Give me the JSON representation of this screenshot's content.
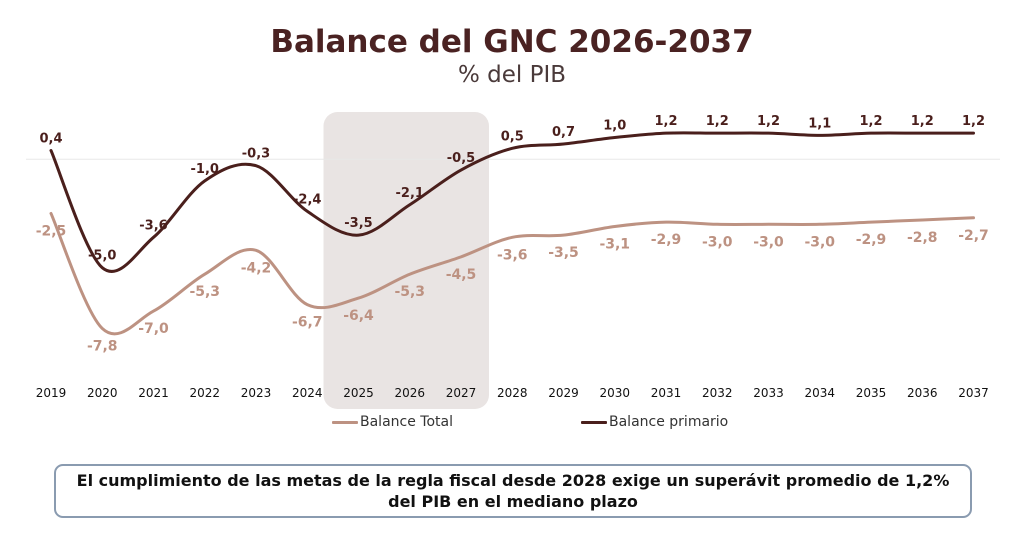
{
  "header": {
    "title": "Balance del GNC 2026-2037",
    "subtitle": "% del PIB"
  },
  "colors": {
    "total": "#bd9282",
    "primario": "#4a1f1c",
    "shade": "#e9e4e3",
    "note_border": "#8a9bb0"
  },
  "legend": {
    "total_label": "Balance Total",
    "primario_label": "Balance primario"
  },
  "note": {
    "text": "El cumplimiento de las metas de la regla fiscal desde 2028 exige un superávit promedio de 1,2% del PIB en el mediano plazo"
  },
  "chart_data": {
    "type": "line",
    "title": "Balance del GNC 2026-2037",
    "subtitle": "% del PIB",
    "categories": [
      "2019",
      "2020",
      "2021",
      "2022",
      "2023",
      "2024",
      "2025",
      "2026",
      "2027",
      "2028",
      "2029",
      "2030",
      "2031",
      "2032",
      "2033",
      "2034",
      "2035",
      "2036",
      "2037"
    ],
    "series": [
      {
        "name": "Balance Total",
        "values": [
          -2.5,
          -7.8,
          -7.0,
          -5.3,
          -4.2,
          -6.7,
          -6.4,
          -5.3,
          -4.5,
          -3.6,
          -3.5,
          -3.1,
          -2.9,
          -3.0,
          -3.0,
          -3.0,
          -2.9,
          -2.8,
          -2.7
        ],
        "labels": [
          "-2,5",
          "-7,8",
          "-7,0",
          "-5,3",
          "-4,2",
          "-6,7",
          "-6,4",
          "-5,3",
          "-4,5",
          "-3,6",
          "-3,5",
          "-3,1",
          "-2,9",
          "-3,0",
          "-3,0",
          "-3,0",
          "-2,9",
          "-2,8",
          "-2,7"
        ]
      },
      {
        "name": "Balance primario",
        "values": [
          0.4,
          -5.0,
          -3.6,
          -1.0,
          -0.3,
          -2.4,
          -3.5,
          -2.1,
          -0.5,
          0.5,
          0.7,
          1.0,
          1.2,
          1.2,
          1.2,
          1.1,
          1.2,
          1.2,
          1.2
        ],
        "labels": [
          "0,4",
          "-5,0",
          "-3,6",
          "-1,0",
          "-0,3",
          "-2,4",
          "-3,5",
          "-2,1",
          "-0,5",
          "0,5",
          "0,7",
          "1,0",
          "1,2",
          "1,2",
          "1,2",
          "1,1",
          "1,2",
          "1,2",
          "1,2"
        ]
      }
    ],
    "shaded_range": [
      "2025",
      "2027"
    ],
    "ylim": [
      -9,
      2
    ],
    "grid": false,
    "zero_line": true,
    "legend_position": "bottom"
  }
}
